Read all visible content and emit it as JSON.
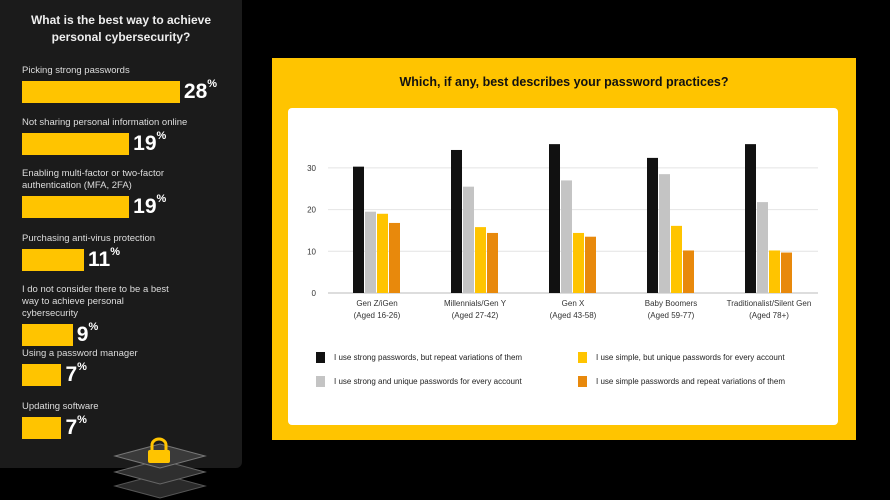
{
  "left_panel": {
    "title_line1": "What is the best way to achieve",
    "title_line2": "personal cybersecurity?",
    "items": [
      {
        "label": "Picking strong passwords",
        "value": 28
      },
      {
        "label": "Not sharing personal information online",
        "value": 19
      },
      {
        "label": "Enabling multi-factor or two-factor authentication (MFA, 2FA)",
        "value": 19
      },
      {
        "label": "Purchasing anti-virus protection",
        "value": 11
      },
      {
        "label": "I do not consider there to be a best way to achieve personal cybersecurity",
        "value": 9
      },
      {
        "label": "Using a password manager",
        "value": 7
      },
      {
        "label": "Updating software",
        "value": 7
      }
    ],
    "bar_color": "#ffc400"
  },
  "chart_data": {
    "type": "bar",
    "title": "Which, if any, best describes your password practices?",
    "categories": [
      [
        "Gen Z/iGen",
        "(Aged 16-26)"
      ],
      [
        "Millennials/Gen Y",
        "(Aged 27-42)"
      ],
      [
        "Gen X",
        "(Aged 43-58)"
      ],
      [
        "Baby Boomers",
        "(Aged 59-77)"
      ],
      [
        "Traditionalist/Silent Gen",
        "(Aged 78+)"
      ]
    ],
    "ylim": [
      0,
      36
    ],
    "yticks": [
      0,
      10,
      20,
      30
    ],
    "grid": true,
    "series": [
      {
        "name": "I use strong passwords, but repeat variations of them",
        "color": "#111111",
        "values": [
          30.3,
          34.3,
          35.7,
          32.4,
          35.7
        ]
      },
      {
        "name": "I use strong and unique passwords for every account",
        "color": "#c4c4c4",
        "values": [
          19.5,
          25.5,
          27,
          28.5,
          21.8
        ]
      },
      {
        "name": "I use simple, but unique passwords for every account",
        "color": "#ffc400",
        "values": [
          19,
          15.8,
          14.4,
          16.1,
          10.2
        ]
      },
      {
        "name": "I use simple passwords and repeat variations of them",
        "color": "#e8890c",
        "values": [
          16.8,
          14.4,
          13.5,
          10.2,
          9.7
        ]
      }
    ],
    "legend_placement": "bottom"
  }
}
